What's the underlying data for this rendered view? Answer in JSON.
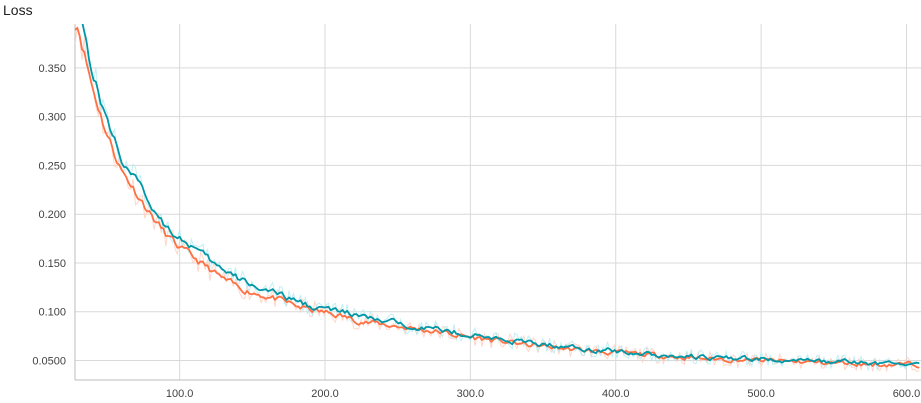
{
  "chart_data": {
    "type": "line",
    "title": "Loss",
    "xlabel": "",
    "ylabel": "",
    "xlim": [
      28,
      610
    ],
    "ylim": [
      0.03,
      0.395
    ],
    "grid": true,
    "x_ticks": [
      100,
      200,
      300,
      400,
      500,
      600
    ],
    "x_tick_labels": [
      "100.0",
      "200.0",
      "300.0",
      "400.0",
      "500.0",
      "600.0"
    ],
    "y_ticks": [
      0.05,
      0.1,
      0.15,
      0.2,
      0.25,
      0.3,
      0.35
    ],
    "y_tick_labels": [
      "0.0500",
      "0.100",
      "0.150",
      "0.200",
      "0.250",
      "0.300",
      "0.350"
    ],
    "series": [
      {
        "color": "#ff7043",
        "raw_color": "#ffccbc",
        "x": [
          30,
          40,
          50,
          60,
          70,
          80,
          90,
          100,
          110,
          120,
          130,
          140,
          150,
          160,
          170,
          180,
          190,
          200,
          210,
          220,
          230,
          240,
          250,
          260,
          270,
          280,
          290,
          300,
          320,
          340,
          360,
          380,
          400,
          420,
          440,
          460,
          480,
          500,
          520,
          540,
          560,
          580,
          600,
          610
        ],
        "y": [
          0.395,
          0.33,
          0.282,
          0.245,
          0.223,
          0.2,
          0.18,
          0.165,
          0.155,
          0.144,
          0.133,
          0.125,
          0.12,
          0.116,
          0.111,
          0.106,
          0.102,
          0.099,
          0.096,
          0.092,
          0.089,
          0.087,
          0.085,
          0.083,
          0.081,
          0.079,
          0.076,
          0.074,
          0.07,
          0.066,
          0.063,
          0.06,
          0.058,
          0.056,
          0.054,
          0.052,
          0.051,
          0.05,
          0.049,
          0.048,
          0.047,
          0.046,
          0.046,
          0.046
        ]
      },
      {
        "color": "#0097a7",
        "raw_color": "#b2ebf2",
        "x": [
          30,
          40,
          50,
          60,
          70,
          80,
          90,
          100,
          110,
          120,
          130,
          140,
          150,
          160,
          170,
          180,
          190,
          200,
          210,
          220,
          230,
          240,
          250,
          260,
          270,
          280,
          290,
          300,
          320,
          340,
          360,
          380,
          400,
          420,
          440,
          460,
          480,
          500,
          520,
          540,
          560,
          580,
          600,
          610
        ],
        "y": [
          0.42,
          0.345,
          0.295,
          0.258,
          0.234,
          0.21,
          0.19,
          0.176,
          0.165,
          0.153,
          0.142,
          0.134,
          0.128,
          0.122,
          0.116,
          0.111,
          0.106,
          0.103,
          0.1,
          0.097,
          0.093,
          0.09,
          0.088,
          0.086,
          0.084,
          0.081,
          0.079,
          0.076,
          0.072,
          0.068,
          0.065,
          0.062,
          0.06,
          0.057,
          0.055,
          0.053,
          0.052,
          0.051,
          0.05,
          0.049,
          0.048,
          0.047,
          0.047,
          0.047
        ]
      }
    ]
  }
}
